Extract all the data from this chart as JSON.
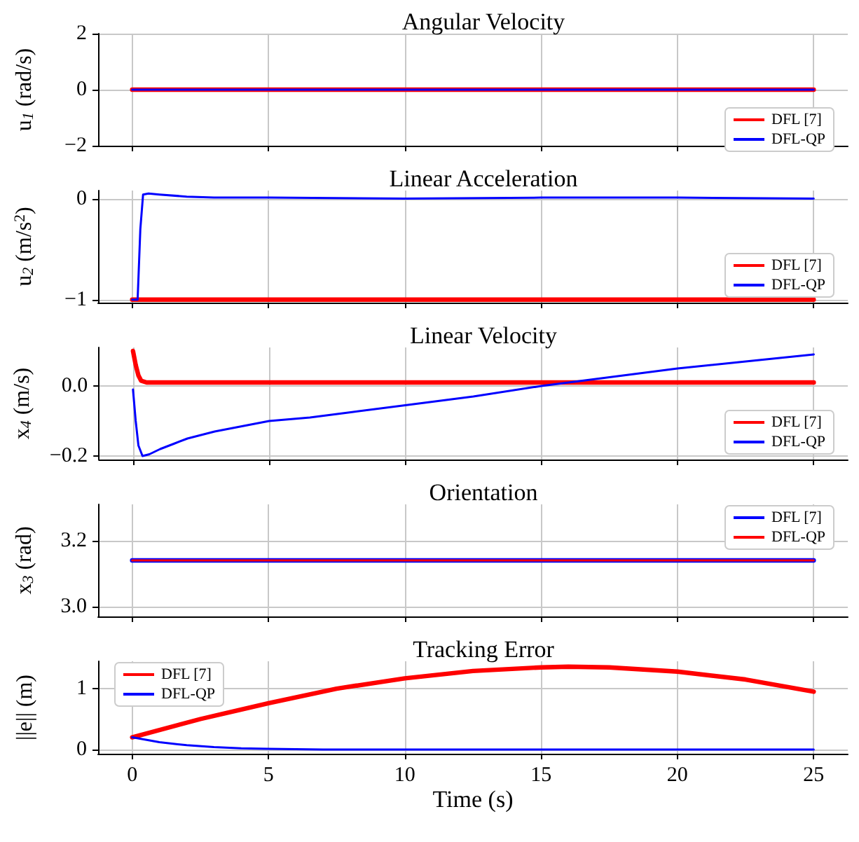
{
  "chart_data": [
    {
      "type": "line",
      "title": "Angular Velocity",
      "ylabel": "u$_{1}$ (rad/s)",
      "xlim": [
        -1.25,
        26.25
      ],
      "xticks": [
        0,
        5,
        10,
        15,
        20,
        25
      ],
      "ylim": [
        -2,
        2
      ],
      "yticks": [
        {
          "value": -2,
          "label": "−2"
        },
        0,
        2
      ],
      "tick_labels": "y",
      "grid": true,
      "legend": "right",
      "marker": "none",
      "line_style": "solid",
      "series": [
        {
          "name": "DFL [7]",
          "color": "#ff0000",
          "x": [
            0,
            25
          ],
          "values": [
            0,
            0
          ]
        },
        {
          "name": "DFL-QP",
          "color": "#0000ff",
          "x": [
            0,
            25
          ],
          "values": [
            0,
            0
          ]
        }
      ]
    },
    {
      "type": "line",
      "title": "Linear Acceleration",
      "ylabel": "u$_{2}$ (m/s$^{2}$)",
      "xlim": [
        -1.25,
        26.25
      ],
      "xticks": [
        0,
        5,
        10,
        15,
        20,
        25
      ],
      "ylim": [
        -1.03,
        0.08
      ],
      "yticks": [
        {
          "value": -1,
          "label": "−1"
        },
        0
      ],
      "tick_labels": "y",
      "grid": true,
      "legend": "bottom right",
      "marker": "none",
      "line_style": "solid",
      "series": [
        {
          "name": "DFL [7]",
          "color": "#ff0000",
          "x": [
            0,
            25
          ],
          "values": [
            -1,
            -1
          ]
        },
        {
          "name": "DFL-QP",
          "color": "#0000ff",
          "x": [
            0,
            0.2,
            0.3,
            0.4,
            0.6,
            1,
            2,
            3,
            5,
            10,
            15,
            20,
            25
          ],
          "values": [
            -1,
            -1,
            -0.3,
            0.04,
            0.05,
            0.04,
            0.02,
            0.01,
            0.01,
            0,
            0.01,
            0.01,
            0
          ]
        }
      ]
    },
    {
      "type": "line",
      "title": "Linear Velocity",
      "ylabel": "x$_{4}$ (m/s)",
      "xlim": [
        -1.25,
        26.25
      ],
      "xticks": [
        0,
        5,
        10,
        15,
        20,
        25
      ],
      "ylim": [
        -0.21,
        0.11
      ],
      "yticks": [
        {
          "value": -0.2,
          "label": "−0.2"
        },
        {
          "value": 0,
          "label": "0.0"
        }
      ],
      "tick_labels": "y",
      "grid": true,
      "legend": "bottom right",
      "marker": "none",
      "line_style": "solid",
      "series": [
        {
          "name": "DFL [7]",
          "color": "#ff0000",
          "x": [
            0,
            0.1,
            0.2,
            0.3,
            0.5,
            1,
            25
          ],
          "values": [
            0.1,
            0.06,
            0.03,
            0.015,
            0.01,
            0.01,
            0.01
          ]
        },
        {
          "name": "DFL-QP",
          "color": "#0000ff",
          "x": [
            0,
            0.1,
            0.2,
            0.35,
            0.6,
            1,
            1.5,
            2,
            3,
            4,
            5,
            6.5,
            8,
            10,
            12.5,
            15,
            17.5,
            20,
            22.5,
            25
          ],
          "values": [
            -0.01,
            -0.1,
            -0.17,
            -0.2,
            -0.195,
            -0.18,
            -0.165,
            -0.15,
            -0.13,
            -0.115,
            -0.1,
            -0.09,
            -0.075,
            -0.055,
            -0.03,
            0,
            0.025,
            0.05,
            0.07,
            0.09
          ]
        }
      ]
    },
    {
      "type": "line",
      "title": "Orientation",
      "ylabel": "x$_{3}$ (rad)",
      "xlim": [
        -1.25,
        26.25
      ],
      "xticks": [
        0,
        5,
        10,
        15,
        20,
        25
      ],
      "ylim": [
        2.97,
        3.31
      ],
      "yticks": [
        {
          "value": 3.0,
          "label": "3.0"
        },
        {
          "value": 3.2,
          "label": "3.2"
        }
      ],
      "tick_labels": "y",
      "grid": true,
      "legend": "top right",
      "marker": "none",
      "line_style": "solid",
      "series": [
        {
          "name": "DFL [7]",
          "color": "#0000ff",
          "x": [
            0,
            25
          ],
          "values": [
            3.14,
            3.14
          ]
        },
        {
          "name": "DFL-QP",
          "color": "#ff0000",
          "x": [
            0,
            25
          ],
          "values": [
            3.14,
            3.14
          ]
        }
      ]
    },
    {
      "type": "line",
      "title": "Tracking Error",
      "xlabel": "Time (s)",
      "ylabel": "||e|| (m)",
      "xlim": [
        -1.25,
        26.25
      ],
      "xticks": [
        0,
        5,
        10,
        15,
        20,
        25
      ],
      "ylim": [
        -0.07,
        1.45
      ],
      "yticks": [
        0,
        1
      ],
      "grid": true,
      "legend": "top left",
      "marker": "none",
      "line_style": "solid",
      "series": [
        {
          "name": "DFL [7]",
          "color": "#ff0000",
          "x": [
            0,
            2.5,
            5,
            7.5,
            10,
            12.5,
            15,
            16,
            17.5,
            20,
            22.5,
            25
          ],
          "values": [
            0.2,
            0.5,
            0.76,
            1.0,
            1.17,
            1.29,
            1.35,
            1.36,
            1.35,
            1.28,
            1.15,
            0.95
          ]
        },
        {
          "name": "DFL-QP",
          "color": "#0000ff",
          "x": [
            0,
            1,
            2,
            3,
            4,
            5,
            7,
            10,
            25
          ],
          "values": [
            0.2,
            0.12,
            0.07,
            0.04,
            0.02,
            0.01,
            0,
            0,
            0
          ]
        }
      ]
    }
  ]
}
